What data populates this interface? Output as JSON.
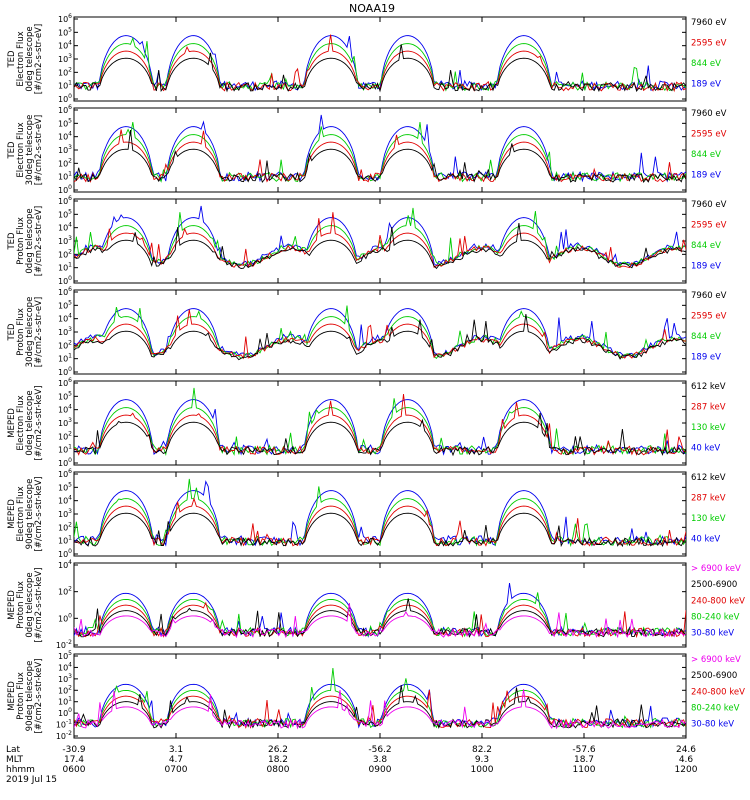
{
  "title": "NOAA19",
  "panels": [
    {
      "ylabel": [
        "TED",
        "Electron Flux",
        "0deg telescope",
        "[#/cm2-s-str-eV]"
      ],
      "yticks": [
        "10^0",
        "10^1",
        "10^2",
        "10^3",
        "10^4",
        "10^5",
        "10^6"
      ],
      "legend": [
        {
          "text": "7960 eV",
          "color": "#000000"
        },
        {
          "text": "2595 eV",
          "color": "#e00000"
        },
        {
          "text": "844 eV",
          "color": "#00cc00"
        },
        {
          "text": "189 eV",
          "color": "#0000ee"
        }
      ]
    },
    {
      "ylabel": [
        "TED",
        "Electron Flux",
        "30deg telescope",
        "[#/cm2-s-str-eV]"
      ],
      "yticks": [
        "10^0",
        "10^1",
        "10^2",
        "10^3",
        "10^4",
        "10^5",
        "10^6"
      ],
      "legend": [
        {
          "text": "7960 eV",
          "color": "#000000"
        },
        {
          "text": "2595 eV",
          "color": "#e00000"
        },
        {
          "text": "844 eV",
          "color": "#00cc00"
        },
        {
          "text": "189 eV",
          "color": "#0000ee"
        }
      ]
    },
    {
      "ylabel": [
        "TED",
        "Proton Flux",
        "0deg telescope",
        "[#/cm2-s-str-eV]"
      ],
      "yticks": [
        "10^0",
        "10^1",
        "10^2",
        "10^3",
        "10^4",
        "10^5",
        "10^6"
      ],
      "legend": [
        {
          "text": "7960 eV",
          "color": "#000000"
        },
        {
          "text": "2595 eV",
          "color": "#e00000"
        },
        {
          "text": "844 eV",
          "color": "#00cc00"
        },
        {
          "text": "189 eV",
          "color": "#0000ee"
        }
      ]
    },
    {
      "ylabel": [
        "TED",
        "Proton Flux",
        "30deg telescope",
        "[#/cm2-s-str-eV]"
      ],
      "yticks": [
        "10^0",
        "10^1",
        "10^2",
        "10^3",
        "10^4",
        "10^5",
        "10^6"
      ],
      "legend": [
        {
          "text": "7960 eV",
          "color": "#000000"
        },
        {
          "text": "2595 eV",
          "color": "#e00000"
        },
        {
          "text": "844 eV",
          "color": "#00cc00"
        },
        {
          "text": "189 eV",
          "color": "#0000ee"
        }
      ]
    },
    {
      "ylabel": [
        "MEPED",
        "Electron Flux",
        "0deg telescope",
        "[#/cm2-s-str-keV]"
      ],
      "yticks": [
        "10^0",
        "10^1",
        "10^2",
        "10^3",
        "10^4",
        "10^5",
        "10^6"
      ],
      "legend": [
        {
          "text": "612 keV",
          "color": "#000000"
        },
        {
          "text": "287 keV",
          "color": "#e00000"
        },
        {
          "text": "130 keV",
          "color": "#00cc00"
        },
        {
          "text": "40 keV",
          "color": "#0000ee"
        }
      ]
    },
    {
      "ylabel": [
        "MEPED",
        "Electron Flux",
        "90deg telescope",
        "[#/cm2-s-str-keV]"
      ],
      "yticks": [
        "10^0",
        "10^1",
        "10^2",
        "10^3",
        "10^4",
        "10^5",
        "10^6"
      ],
      "legend": [
        {
          "text": "612 keV",
          "color": "#000000"
        },
        {
          "text": "287 keV",
          "color": "#e00000"
        },
        {
          "text": "130 keV",
          "color": "#00cc00"
        },
        {
          "text": "40 keV",
          "color": "#0000ee"
        }
      ]
    },
    {
      "ylabel": [
        "MEPED",
        "Proton Flux",
        "0deg telescope",
        "[#/cm2-s-str-keV]"
      ],
      "yticks": [
        "10^-2",
        "10^0",
        "10^2",
        "10^4"
      ],
      "legend": [
        {
          "text": "> 6900 keV",
          "color": "#ee00ee"
        },
        {
          "text": "2500-6900",
          "color": "#000000"
        },
        {
          "text": "240-800 keV",
          "color": "#e00000"
        },
        {
          "text": "80-240 keV",
          "color": "#00cc00"
        },
        {
          "text": "30-80 keV",
          "color": "#0000ee"
        }
      ]
    },
    {
      "ylabel": [
        "MEPED",
        "Proton Flux",
        "90deg telescope",
        "[#/cm2-s-str-keV]"
      ],
      "yticks": [
        "10^-2",
        "10^-1",
        "10^0",
        "10^1",
        "10^2",
        "10^3",
        "10^4",
        "10^5"
      ],
      "legend": [
        {
          "text": "> 6900 keV",
          "color": "#ee00ee"
        },
        {
          "text": "2500-6900",
          "color": "#000000"
        },
        {
          "text": "240-800 keV",
          "color": "#e00000"
        },
        {
          "text": "80-240 keV",
          "color": "#00cc00"
        },
        {
          "text": "30-80 keV",
          "color": "#0000ee"
        }
      ]
    }
  ],
  "x_axis": {
    "row_labels": [
      "Lat",
      "MLT",
      "hhmm",
      "2019 Jul 15"
    ],
    "ticks": [
      {
        "lat": "-30.9",
        "mlt": "17.4",
        "hhmm": "0600"
      },
      {
        "lat": "3.1",
        "mlt": "4.7",
        "hhmm": "0700"
      },
      {
        "lat": "26.2",
        "mlt": "18.2",
        "hhmm": "0800"
      },
      {
        "lat": "-56.2",
        "mlt": "3.8",
        "hhmm": "0900"
      },
      {
        "lat": "82.2",
        "mlt": "9.3",
        "hhmm": "1000"
      },
      {
        "lat": "-57.6",
        "mlt": "18.7",
        "hhmm": "1100"
      },
      {
        "lat": "24.6",
        "mlt": "4.6",
        "hhmm": "1200"
      }
    ]
  },
  "chart_data": {
    "type": "line",
    "title": "NOAA19",
    "x": [
      "0600",
      "0700",
      "0800",
      "0900",
      "1000",
      "1100",
      "1200"
    ],
    "xlabel": "hhmm",
    "y_scale": "log",
    "panels": [
      {
        "ylabel": "TED Electron Flux 0deg telescope [#/cm2-s-str-eV]",
        "ylim": [
          1,
          1000000
        ],
        "series": [
          {
            "name": "7960 eV"
          },
          {
            "name": "2595 eV"
          },
          {
            "name": "844 eV"
          },
          {
            "name": "189 eV"
          }
        ]
      },
      {
        "ylabel": "TED Electron Flux 30deg telescope [#/cm2-s-str-eV]",
        "ylim": [
          1,
          1000000
        ],
        "series": [
          {
            "name": "7960 eV"
          },
          {
            "name": "2595 eV"
          },
          {
            "name": "844 eV"
          },
          {
            "name": "189 eV"
          }
        ]
      },
      {
        "ylabel": "TED Proton Flux 0deg telescope [#/cm2-s-str-eV]",
        "ylim": [
          1,
          1000000
        ],
        "series": [
          {
            "name": "7960 eV"
          },
          {
            "name": "2595 eV"
          },
          {
            "name": "844 eV"
          },
          {
            "name": "189 eV"
          }
        ]
      },
      {
        "ylabel": "TED Proton Flux 30deg telescope [#/cm2-s-str-eV]",
        "ylim": [
          1,
          1000000
        ],
        "series": [
          {
            "name": "7960 eV"
          },
          {
            "name": "2595 eV"
          },
          {
            "name": "844 eV"
          },
          {
            "name": "189 eV"
          }
        ]
      },
      {
        "ylabel": "MEPED Electron Flux 0deg telescope [#/cm2-s-str-keV]",
        "ylim": [
          1,
          1000000
        ],
        "series": [
          {
            "name": "612 keV"
          },
          {
            "name": "287 keV"
          },
          {
            "name": "130 keV"
          },
          {
            "name": "40 keV"
          }
        ]
      },
      {
        "ylabel": "MEPED Electron Flux 90deg telescope [#/cm2-s-str-keV]",
        "ylim": [
          1,
          1000000
        ],
        "series": [
          {
            "name": "612 keV"
          },
          {
            "name": "287 keV"
          },
          {
            "name": "130 keV"
          },
          {
            "name": "40 keV"
          }
        ]
      },
      {
        "ylabel": "MEPED Proton Flux 0deg telescope [#/cm2-s-str-keV]",
        "ylim": [
          0.01,
          100000
        ],
        "series": [
          {
            "name": "> 6900 keV"
          },
          {
            "name": "2500-6900"
          },
          {
            "name": "240-800 keV"
          },
          {
            "name": "80-240 keV"
          },
          {
            "name": "30-80 keV"
          }
        ]
      },
      {
        "ylabel": "MEPED Proton Flux 90deg telescope [#/cm2-s-str-keV]",
        "ylim": [
          0.01,
          100000
        ],
        "series": [
          {
            "name": "> 6900 keV"
          },
          {
            "name": "2500-6900"
          },
          {
            "name": "240-800 keV"
          },
          {
            "name": "80-240 keV"
          },
          {
            "name": "30-80 keV"
          }
        ]
      }
    ]
  }
}
